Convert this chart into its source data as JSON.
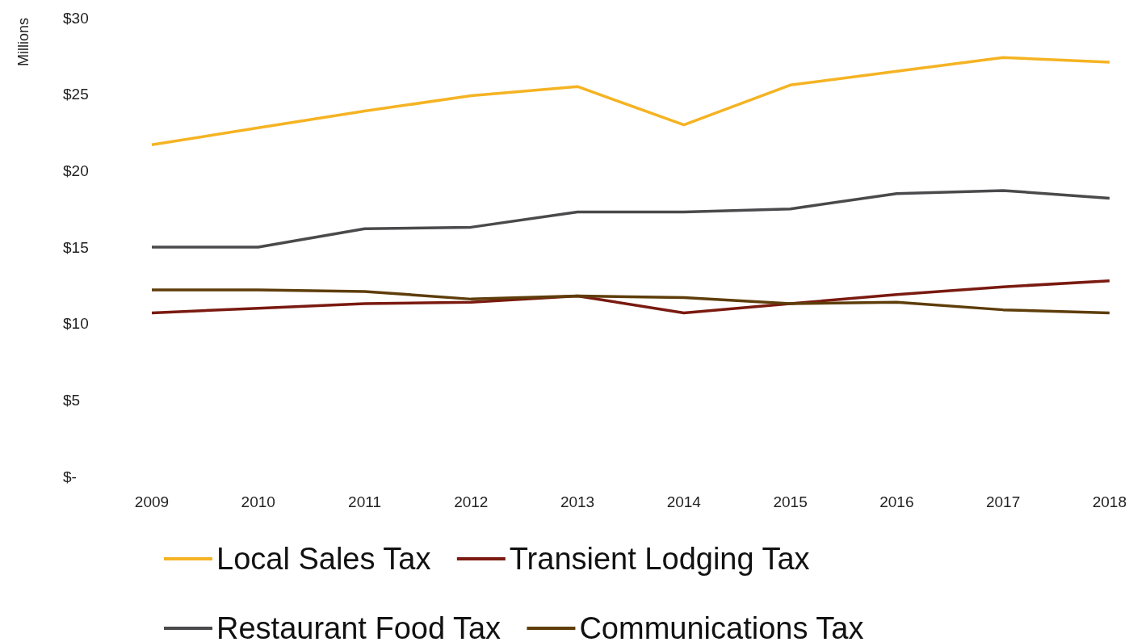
{
  "chart_data": {
    "type": "line",
    "ylabel": "Millions",
    "categories": [
      "2009",
      "2010",
      "2011",
      "2012",
      "2013",
      "2014",
      "2015",
      "2016",
      "2017",
      "2018"
    ],
    "ylim": [
      0,
      30
    ],
    "yticks": [
      {
        "value": 0,
        "label": "$-"
      },
      {
        "value": 5,
        "label": "$5"
      },
      {
        "value": 10,
        "label": "$10"
      },
      {
        "value": 15,
        "label": "$15"
      },
      {
        "value": 20,
        "label": "$20"
      },
      {
        "value": 25,
        "label": "$25"
      },
      {
        "value": 30,
        "label": "$30"
      }
    ],
    "series": [
      {
        "name": "Local Sales Tax",
        "color": "#f5b323",
        "values": [
          21.7,
          22.8,
          23.9,
          24.9,
          25.5,
          23.0,
          25.6,
          26.5,
          27.4,
          27.1
        ]
      },
      {
        "name": "Transient Lodging Tax",
        "color": "#7a1a10",
        "values": [
          10.7,
          11.0,
          11.3,
          11.4,
          11.8,
          10.7,
          11.3,
          11.9,
          12.4,
          12.8
        ]
      },
      {
        "name": "Restaurant Food Tax",
        "color": "#4a4a4c",
        "values": [
          15.0,
          15.0,
          16.2,
          16.3,
          17.3,
          17.3,
          17.5,
          18.5,
          18.7,
          18.2
        ]
      },
      {
        "name": "Communications Tax",
        "color": "#5e3d0a",
        "values": [
          12.2,
          12.2,
          12.1,
          11.6,
          11.8,
          11.7,
          11.3,
          11.4,
          10.9,
          10.7
        ]
      }
    ],
    "grid": false,
    "legend": "bottom",
    "marker": "none",
    "line_style": "solid"
  }
}
